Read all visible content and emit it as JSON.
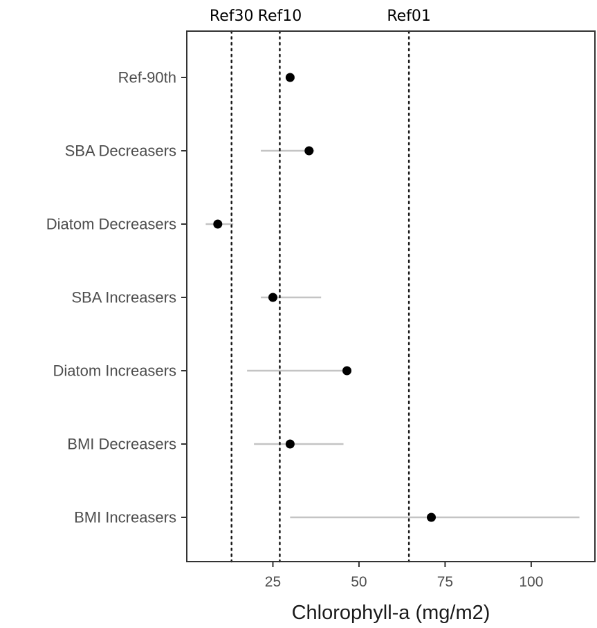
{
  "chart_data": {
    "type": "scatter",
    "xlabel": "Chlorophyll-a (mg/m2)",
    "ylabel": "",
    "xlim": [
      0,
      118.5
    ],
    "x_ticks": [
      25,
      50,
      75,
      100
    ],
    "grid": false,
    "categories": [
      "Ref-90th",
      "SBA Decreasers",
      "Diatom Decreasers",
      "SBA Increasers",
      "Diatom Increasers",
      "BMI Decreasers",
      "BMI Increasers"
    ],
    "series": [
      {
        "points": [
          {
            "category": "Ref-90th",
            "x": 30,
            "low": null,
            "high": null
          },
          {
            "category": "SBA Decreasers",
            "x": 35.5,
            "low": 21.5,
            "high": 37
          },
          {
            "category": "Diatom Decreasers",
            "x": 9,
            "low": 5.5,
            "high": 13.5
          },
          {
            "category": "SBA Increasers",
            "x": 25,
            "low": 21.5,
            "high": 39
          },
          {
            "category": "Diatom Increasers",
            "x": 46.5,
            "low": 17.5,
            "high": 47
          },
          {
            "category": "BMI Decreasers",
            "x": 30,
            "low": 19.5,
            "high": 45.5
          },
          {
            "category": "BMI Increasers",
            "x": 71,
            "low": 30,
            "high": 114
          }
        ]
      }
    ],
    "reference_lines": [
      {
        "label": "Ref30",
        "x": 13
      },
      {
        "label": "Ref10",
        "x": 27
      },
      {
        "label": "Ref01",
        "x": 64.5
      }
    ],
    "colors": {
      "point": "#000000",
      "interval": "#c4c4c4",
      "reference": "#1a1a1a",
      "panel_border": "#333333",
      "tick_text": "#4d4d4d"
    }
  }
}
